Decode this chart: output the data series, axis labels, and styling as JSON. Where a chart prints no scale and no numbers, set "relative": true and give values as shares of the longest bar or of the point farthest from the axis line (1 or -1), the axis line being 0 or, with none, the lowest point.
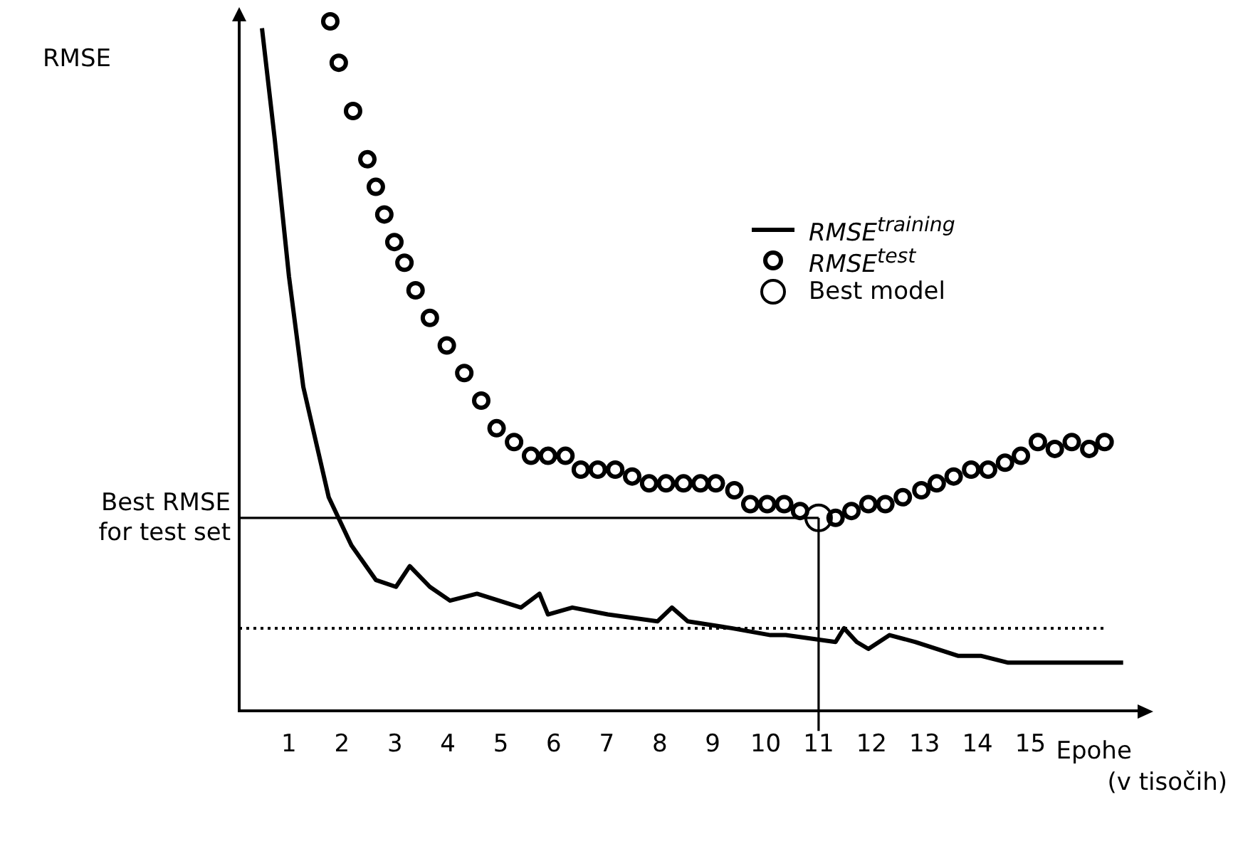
{
  "chart_data": {
    "type": "line",
    "relative": true,
    "xlabel": "Epohe (v tisočih)",
    "xlim": [
      0.06,
      17.05
    ],
    "xticks": [
      1,
      2,
      3,
      4,
      5,
      6,
      7,
      8,
      9,
      10,
      11,
      12,
      13,
      14,
      15
    ],
    "grid": false,
    "legend": "top right",
    "annotations": [
      "RMSE"
    ],
    "series": [
      {
        "name": "RMSE$^{training}$",
        "marker": "none",
        "color": "#000000",
        "x": [
          0.49,
          0.73,
          1.0,
          1.27,
          1.54,
          1.75,
          2.18,
          2.64,
          3.02,
          3.28,
          3.66,
          4.04,
          4.55,
          5.38,
          5.73,
          5.89,
          6.35,
          7.02,
          7.96,
          8.23,
          8.53,
          9.36,
          10.09,
          10.38,
          11.32,
          11.48,
          11.72,
          11.94,
          12.34,
          12.83,
          13.63,
          14.06,
          14.58,
          16.75
        ],
        "values": [
          0.99,
          0.83,
          0.63,
          0.47,
          0.38,
          0.31,
          0.24,
          0.19,
          0.18,
          0.21,
          0.18,
          0.16,
          0.17,
          0.15,
          0.17,
          0.14,
          0.15,
          0.14,
          0.13,
          0.15,
          0.13,
          0.12,
          0.11,
          0.11,
          0.1,
          0.12,
          0.1,
          0.09,
          0.11,
          0.1,
          0.08,
          0.08,
          0.07,
          0.07
        ]
      },
      {
        "name": "RMSE$^{test}$",
        "type": "scatter",
        "marker": "circle",
        "color": "#000000",
        "x": [
          1.78,
          1.94,
          2.21,
          2.48,
          2.64,
          2.8,
          2.99,
          3.18,
          3.39,
          3.66,
          3.98,
          4.31,
          4.63,
          4.92,
          5.25,
          5.57,
          5.89,
          6.22,
          6.51,
          6.83,
          7.16,
          7.48,
          7.8,
          8.12,
          8.45,
          8.77,
          9.06,
          9.41,
          9.71,
          10.03,
          10.35,
          10.65,
          11.32,
          11.62,
          11.94,
          12.26,
          12.59,
          12.94,
          13.23,
          13.55,
          13.88,
          14.2,
          14.52,
          14.82,
          15.14,
          15.46,
          15.78,
          16.11,
          16.4
        ],
        "values": [
          1.0,
          0.94,
          0.87,
          0.8,
          0.76,
          0.72,
          0.68,
          0.65,
          0.61,
          0.57,
          0.53,
          0.49,
          0.45,
          0.41,
          0.39,
          0.37,
          0.37,
          0.37,
          0.35,
          0.35,
          0.35,
          0.34,
          0.33,
          0.33,
          0.33,
          0.33,
          0.33,
          0.32,
          0.3,
          0.3,
          0.3,
          0.29,
          0.28,
          0.29,
          0.3,
          0.3,
          0.31,
          0.32,
          0.33,
          0.34,
          0.35,
          0.35,
          0.36,
          0.37,
          0.39,
          0.38,
          0.39,
          0.38,
          0.39
        ]
      },
      {
        "name": "Best model",
        "type": "scatter",
        "marker": "circle",
        "color": "#ffffff",
        "x": [
          11
        ],
        "values": [
          0.28
        ]
      }
    ],
    "ref_lines": [
      {
        "axis": "y",
        "value": 0.28,
        "label": "Best RMSE for test set",
        "line_style": "solid"
      },
      {
        "axis": "x",
        "value": 11,
        "line_style": "solid"
      },
      {
        "axis": "y",
        "value": 0.12,
        "line_style": "dotted"
      }
    ]
  }
}
